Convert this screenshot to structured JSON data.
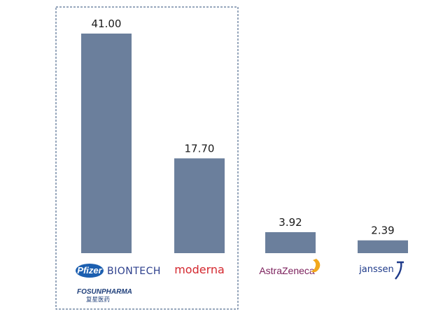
{
  "chart_data": {
    "type": "bar",
    "categories": [
      "Pfizer BIONTECH FOSUNPHARMA 复星医药",
      "moderna",
      "AstraZeneca",
      "janssen"
    ],
    "values": [
      41.0,
      17.7,
      3.92,
      2.39
    ],
    "value_labels": [
      "41.00",
      "17.70",
      "3.92",
      "2.39"
    ],
    "ylim": [
      0,
      41.0
    ],
    "bar_color": "#6b7f9c",
    "highlight_box": {
      "groups": [
        0,
        1
      ],
      "style": "dashed",
      "color": "#2f4f7a"
    },
    "grid": false,
    "legend": "none"
  },
  "logos": {
    "pfizer": "Pfizer",
    "biontech": "BIONTECH",
    "fosun": "FOSUNPHARMA",
    "fosun_cn": "复星医药",
    "moderna": "moderna",
    "astrazeneca": "AstraZeneca",
    "janssen": "janssen"
  }
}
